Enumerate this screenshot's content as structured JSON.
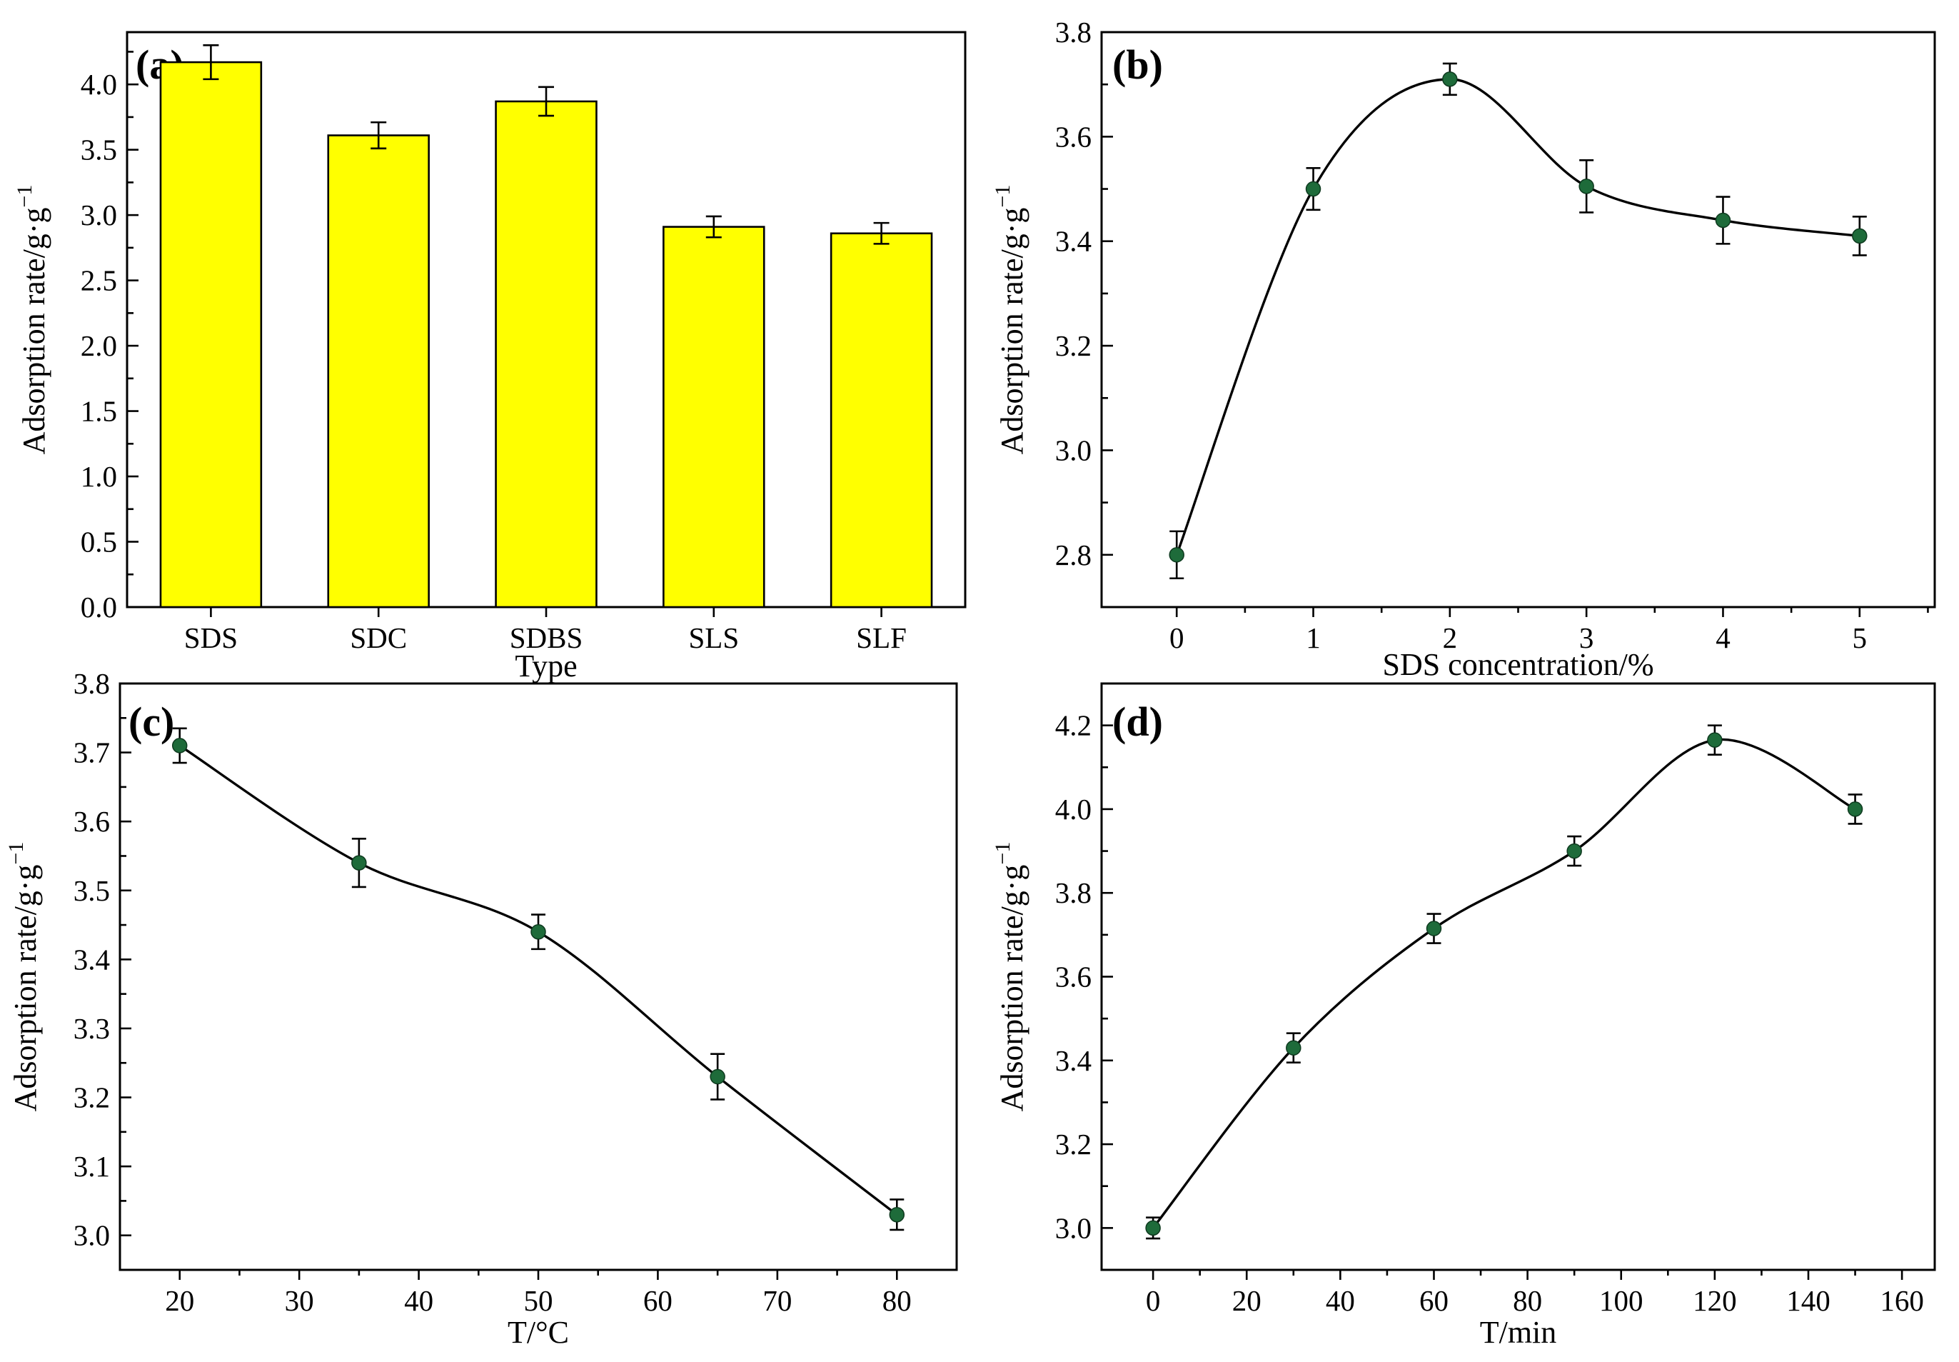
{
  "chart_data": [
    {
      "panel": "(a)",
      "type": "bar",
      "xlabel": "Type",
      "ylabel": "Adsorption rate/g·g",
      "ylabel_sup": "−1",
      "ylim": [
        0,
        4.4
      ],
      "yticks": [
        "0.0",
        "0.5",
        "1.0",
        "1.5",
        "2.0",
        "2.5",
        "3.0",
        "3.5",
        "4.0"
      ],
      "categories": [
        "SDS",
        "SDC",
        "SDBS",
        "SLS",
        "SLF"
      ],
      "values": [
        4.17,
        3.61,
        3.87,
        2.91,
        2.86
      ],
      "errors": [
        0.13,
        0.1,
        0.11,
        0.08,
        0.08
      ],
      "color": "#ffff00"
    },
    {
      "panel": "(b)",
      "type": "line",
      "xlabel": "SDS concentration/%",
      "ylabel": "Adsorption rate/g·g",
      "ylabel_sup": "−1",
      "xlim": [
        -0.55,
        5.55
      ],
      "ylim": [
        2.7,
        3.8
      ],
      "xticks": [
        "0",
        "1",
        "2",
        "3",
        "4",
        "5"
      ],
      "yticks": [
        "2.8",
        "3.0",
        "3.2",
        "3.4",
        "3.6",
        "3.8"
      ],
      "x": [
        0,
        1,
        2,
        3,
        4,
        5
      ],
      "y": [
        2.8,
        3.5,
        3.71,
        3.505,
        3.44,
        3.41
      ],
      "errors": [
        0.045,
        0.04,
        0.03,
        0.05,
        0.045,
        0.037
      ],
      "marker_color": "#1e6b3a"
    },
    {
      "panel": "(c)",
      "type": "line",
      "xlabel": "T/°C",
      "ylabel": "Adsorption rate/g·g",
      "ylabel_sup": "−1",
      "xlim": [
        15,
        85
      ],
      "ylim": [
        2.95,
        3.8
      ],
      "xticks": [
        "20",
        "30",
        "40",
        "50",
        "60",
        "70",
        "80"
      ],
      "yticks": [
        "3.0",
        "3.1",
        "3.2",
        "3.3",
        "3.4",
        "3.5",
        "3.6",
        "3.7",
        "3.8"
      ],
      "x": [
        20,
        35,
        50,
        65,
        80
      ],
      "y": [
        3.71,
        3.54,
        3.44,
        3.23,
        3.03
      ],
      "errors": [
        0.025,
        0.035,
        0.025,
        0.033,
        0.022
      ],
      "marker_color": "#1e6b3a"
    },
    {
      "panel": "(d)",
      "type": "line",
      "xlabel": "T/min",
      "ylabel": "Adsorption rate/g·g",
      "ylabel_sup": "−1",
      "xlim": [
        -11,
        167
      ],
      "ylim": [
        2.9,
        4.3
      ],
      "xticks": [
        "0",
        "20",
        "40",
        "60",
        "80",
        "100",
        "120",
        "140",
        "160"
      ],
      "yticks": [
        "3.0",
        "3.2",
        "3.4",
        "3.6",
        "3.8",
        "4.0",
        "4.2"
      ],
      "x": [
        0,
        30,
        60,
        90,
        120,
        150
      ],
      "y": [
        3.0,
        3.43,
        3.715,
        3.9,
        4.165,
        4.0
      ],
      "errors": [
        0.025,
        0.035,
        0.035,
        0.035,
        0.035,
        0.035
      ],
      "marker_color": "#1e6b3a"
    }
  ]
}
